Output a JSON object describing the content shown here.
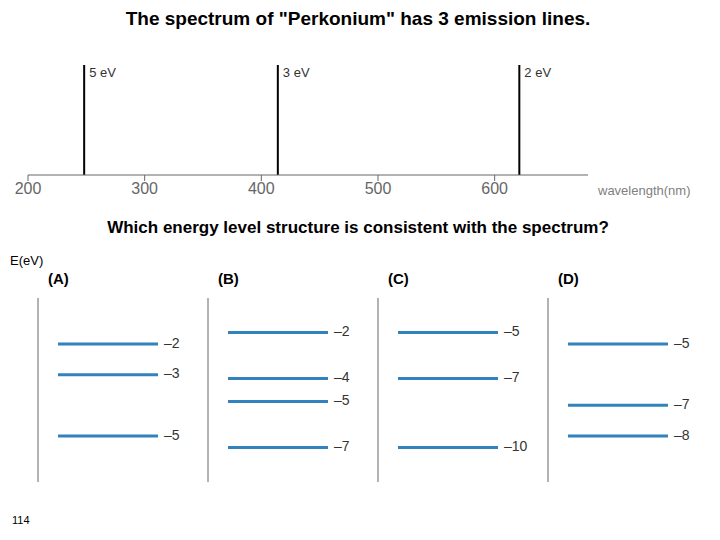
{
  "chart_data": [
    {
      "type": "stem",
      "title": "The spectrum of \"Perkonium\" has 3 emission lines.",
      "subtitle": "Which energy level structure is consistent with the spectrum?",
      "x": [
        248,
        414,
        621
      ],
      "values": [
        1,
        1,
        1
      ],
      "xlim": [
        200,
        680
      ],
      "xticks": [
        200,
        300,
        400,
        500,
        600
      ],
      "ylim": [
        0,
        1
      ],
      "xlabel": "wavelength(nm)",
      "tick_labels": "x",
      "annotations": [
        {
          "x": 248,
          "text": "5 eV"
        },
        {
          "x": 414,
          "text": "3 eV"
        },
        {
          "x": 621,
          "text": "2 eV"
        },
        {
          "text": "114"
        }
      ]
    },
    {
      "type": "levels",
      "title": "(A)",
      "ylabel": "E(eV)",
      "values": [
        -2,
        -3,
        -5
      ],
      "value_labels": [
        "–2",
        "–3",
        "–5"
      ],
      "ylim": [
        -6.5,
        -0.5
      ],
      "tick_labels": false
    },
    {
      "type": "levels",
      "title": "(B)",
      "values": [
        -2,
        -4,
        -5,
        -7
      ],
      "value_labels": [
        "–2",
        "–4",
        "–5",
        "–7"
      ],
      "ylim": [
        -8.5,
        -0.5
      ],
      "tick_labels": false
    },
    {
      "type": "levels",
      "title": "(C)",
      "values": [
        -5,
        -7,
        -10
      ],
      "value_labels": [
        "–5",
        "–7",
        "–10"
      ],
      "ylim": [
        -11.5,
        -3.5
      ],
      "tick_labels": false
    },
    {
      "type": "levels",
      "title": "(D)",
      "values": [
        -5,
        -7,
        -8
      ],
      "value_labels": [
        "–5",
        "–7",
        "–8"
      ],
      "ylim": [
        -9.5,
        -3.5
      ],
      "tick_labels": false
    }
  ]
}
